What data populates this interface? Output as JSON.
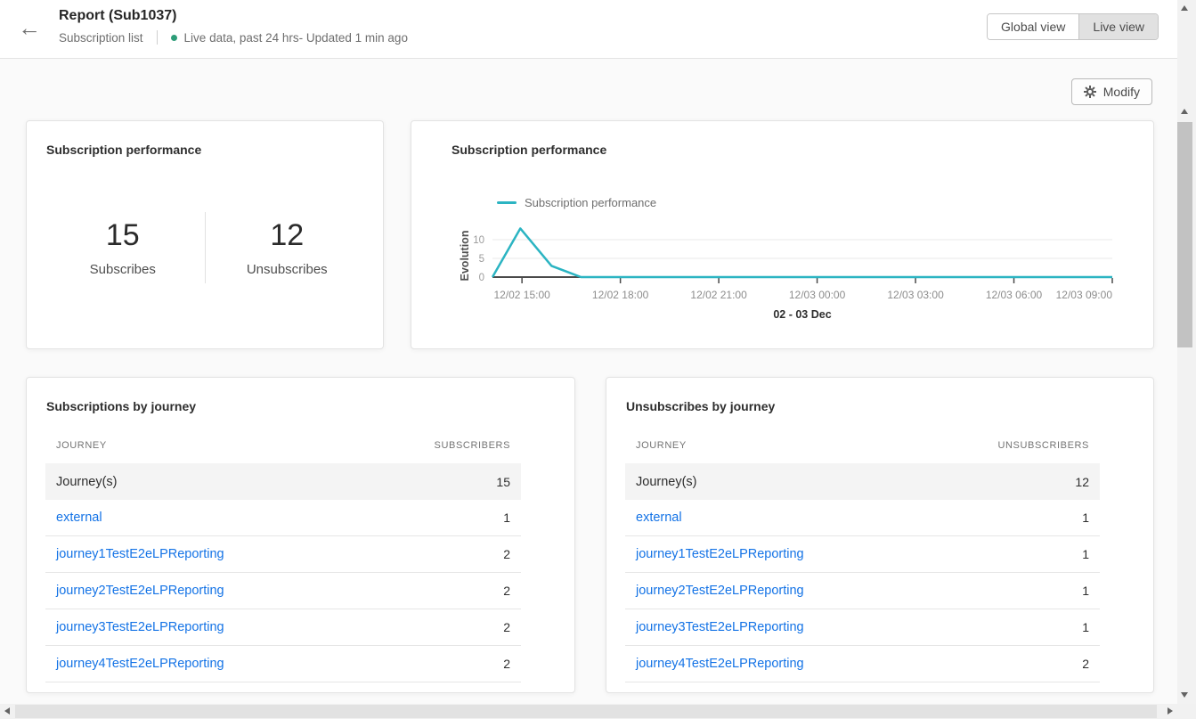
{
  "header": {
    "title": "Report (Sub1037)",
    "breadcrumb": "Subscription list",
    "live_status": "Live data, past 24 hrs- Updated 1 min ago",
    "view_toggle": {
      "options": [
        "Global view",
        "Live view"
      ],
      "selected": "Live view"
    }
  },
  "toolbar": {
    "modify_label": "Modify"
  },
  "kpi_card": {
    "title": "Subscription performance",
    "metrics": [
      {
        "value": "15",
        "label": "Subscribes"
      },
      {
        "value": "12",
        "label": "Unsubscribes"
      }
    ]
  },
  "chart_card": {
    "title": "Subscription performance"
  },
  "chart_data": {
    "type": "line",
    "title": "Subscription performance",
    "legend": [
      {
        "label": "Subscription performance",
        "color": "#2bb4c2"
      }
    ],
    "legend_position": "top-left",
    "ylabel": "Evolution",
    "xlabel": "02 - 03 Dec",
    "yticks": [
      0,
      5,
      10
    ],
    "ylim": [
      0,
      13.5
    ],
    "grid": "horizontal",
    "x_unit": "hours-from-start (12/02 ~14:10 to 12/03 09:00)",
    "xlim": [
      0,
      18.9
    ],
    "xticks": [
      {
        "t": 0.9,
        "label": "12/02 15:00"
      },
      {
        "t": 3.9,
        "label": "12/02 18:00"
      },
      {
        "t": 6.9,
        "label": "12/02 21:00"
      },
      {
        "t": 9.9,
        "label": "12/03 00:00"
      },
      {
        "t": 12.9,
        "label": "12/03 03:00"
      },
      {
        "t": 15.9,
        "label": "12/03 06:00"
      },
      {
        "t": 18.9,
        "label": "12/03 09:00"
      }
    ],
    "series": [
      {
        "name": "Subscription performance",
        "color": "#2bb4c2",
        "points": [
          [
            0,
            0
          ],
          [
            0.85,
            13
          ],
          [
            1.8,
            3
          ],
          [
            2.7,
            0
          ],
          [
            18.9,
            0
          ]
        ]
      }
    ]
  },
  "tables": [
    {
      "title": "Subscriptions by journey",
      "columns": [
        "JOURNEY",
        "SUBSCRIBERS"
      ],
      "rows": [
        {
          "name": "Journey(s)",
          "value": "15",
          "total": true
        },
        {
          "name": "external",
          "value": "1"
        },
        {
          "name": "journey1TestE2eLPReporting",
          "value": "2"
        },
        {
          "name": "journey2TestE2eLPReporting",
          "value": "2"
        },
        {
          "name": "journey3TestE2eLPReporting",
          "value": "2"
        },
        {
          "name": "journey4TestE2eLPReporting",
          "value": "2"
        }
      ]
    },
    {
      "title": "Unsubscribes by journey",
      "columns": [
        "JOURNEY",
        "UNSUBSCRIBERS"
      ],
      "rows": [
        {
          "name": "Journey(s)",
          "value": "12",
          "total": true
        },
        {
          "name": "external",
          "value": "1"
        },
        {
          "name": "journey1TestE2eLPReporting",
          "value": "1"
        },
        {
          "name": "journey2TestE2eLPReporting",
          "value": "1"
        },
        {
          "name": "journey3TestE2eLPReporting",
          "value": "1"
        },
        {
          "name": "journey4TestE2eLPReporting",
          "value": "2"
        }
      ]
    }
  ],
  "icons": {
    "back": "back-arrow-icon",
    "gear": "gear-icon",
    "live_dot": "live-status-dot"
  },
  "colors": {
    "accent_teal": "#2bb4c2",
    "link_blue": "#1473e6",
    "live_dot_green": "#2d9d78"
  }
}
